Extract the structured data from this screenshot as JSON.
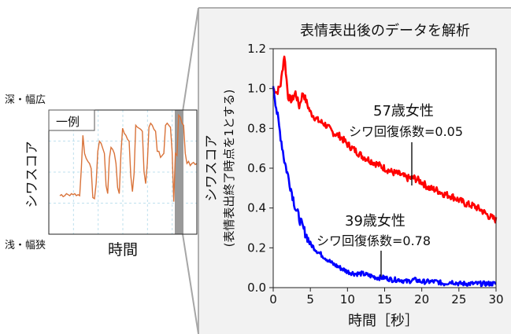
{
  "chart_data": [
    {
      "type": "line",
      "title": "",
      "xlabel": "時間",
      "ylabel": "シワスコア",
      "y_top_label": "深・幅広",
      "y_bottom_label": "浅・幅狭",
      "legend": "一例",
      "grid": true,
      "series": [
        {
          "name": "",
          "color": "#d9733a",
          "values": [
            0.18,
            0.19,
            0.17,
            0.18,
            0.2,
            0.19,
            0.18,
            0.2,
            0.19,
            0.2,
            0.18,
            0.19,
            0.18,
            0.45,
            0.78,
            0.6,
            0.55,
            0.52,
            0.5,
            0.45,
            0.16,
            0.15,
            0.3,
            0.62,
            0.72,
            0.7,
            0.65,
            0.6,
            0.28,
            0.2,
            0.55,
            0.66,
            0.64,
            0.6,
            0.5,
            0.26,
            0.2,
            0.6,
            0.85,
            0.8,
            0.78,
            0.74,
            0.72,
            0.38,
            0.22,
            0.4,
            0.88,
            0.86,
            0.85,
            0.84,
            0.82,
            0.42,
            0.3,
            0.5,
            0.86,
            0.9,
            0.88,
            0.84,
            0.82,
            0.62,
            0.62,
            0.56,
            0.58,
            0.6,
            0.88,
            0.9,
            0.88,
            0.86,
            0.62,
            0.12,
            0.6,
            0.58,
            0.98,
            0.96,
            0.9,
            0.88,
            0.6,
            0.5,
            0.52,
            0.48,
            0.5,
            0.51,
            0.49,
            0.5
          ]
        }
      ]
    },
    {
      "type": "line",
      "title": "表情表出後のデータを解析",
      "xlabel": "時間［秒］",
      "ylabel_line1": "シワスコア",
      "ylabel_line2": "(表情表出終了時点を1とする)",
      "xlim": [
        0,
        30
      ],
      "ylim": [
        0,
        1.2
      ],
      "xticks": [
        "0",
        "5",
        "10",
        "15",
        "20",
        "25",
        "30"
      ],
      "yticks": [
        "0.0",
        "0.2",
        "0.4",
        "0.6",
        "0.8",
        "1.0",
        "1.2"
      ],
      "grid": false,
      "series": [
        {
          "name": "57歳女性",
          "annotation": "シワ回復係数=0.05",
          "color": "#ff0000",
          "x": [
            0,
            0.5,
            1.0,
            1.5,
            2.0,
            2.5,
            3.0,
            3.5,
            4.0,
            5,
            6,
            7,
            8,
            9,
            10,
            11,
            12,
            13,
            14,
            15,
            16,
            17,
            18,
            19,
            20,
            21,
            22,
            23,
            24,
            25,
            26,
            27,
            28,
            29,
            30
          ],
          "values": [
            1.0,
            0.98,
            1.02,
            1.17,
            0.96,
            0.94,
            0.98,
            0.91,
            0.98,
            0.88,
            0.84,
            0.82,
            0.78,
            0.76,
            0.72,
            0.69,
            0.66,
            0.64,
            0.62,
            0.6,
            0.58,
            0.57,
            0.55,
            0.55,
            0.53,
            0.5,
            0.49,
            0.47,
            0.46,
            0.44,
            0.42,
            0.41,
            0.39,
            0.36,
            0.34
          ]
        },
        {
          "name": "39歳女性",
          "annotation": "シワ回復係数=0.78",
          "color": "#0000ff",
          "x": [
            0,
            0.5,
            1.0,
            1.5,
            2.0,
            2.5,
            3.0,
            3.5,
            4.0,
            4.5,
            5,
            6,
            7,
            8,
            9,
            10,
            11,
            12,
            13,
            14,
            15,
            16,
            17,
            18,
            19,
            20,
            21,
            22,
            23,
            24,
            25,
            26,
            27,
            28,
            29,
            30
          ],
          "values": [
            1.02,
            0.88,
            0.76,
            0.64,
            0.56,
            0.48,
            0.4,
            0.35,
            0.3,
            0.26,
            0.22,
            0.18,
            0.15,
            0.12,
            0.1,
            0.08,
            0.07,
            0.07,
            0.06,
            0.05,
            0.05,
            0.04,
            0.04,
            0.03,
            0.04,
            0.03,
            0.03,
            0.03,
            0.02,
            0.03,
            0.02,
            0.02,
            0.02,
            0.02,
            0.02,
            0.02
          ]
        }
      ]
    }
  ]
}
